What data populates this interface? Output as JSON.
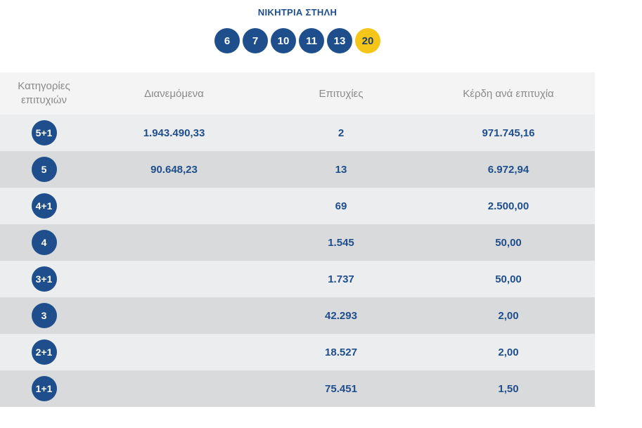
{
  "header": {
    "title": "ΝΙΚΗΤΡΙΑ ΣΤΗΛΗ",
    "numbers": [
      "6",
      "7",
      "10",
      "11",
      "13"
    ],
    "bonus": "20"
  },
  "table": {
    "columns": [
      "Κατηγορίες επιτυχιών",
      "Διανεμόμενα",
      "Επιτυχίες",
      "Κέρδη ανά επιτυχία"
    ],
    "rows": [
      {
        "category": "5+1",
        "distributed": "1.943.490,33",
        "winners": "2",
        "prize": "971.745,16"
      },
      {
        "category": "5",
        "distributed": "90.648,23",
        "winners": "13",
        "prize": "6.972,94"
      },
      {
        "category": "4+1",
        "distributed": "",
        "winners": "69",
        "prize": "2.500,00"
      },
      {
        "category": "4",
        "distributed": "",
        "winners": "1.545",
        "prize": "50,00"
      },
      {
        "category": "3+1",
        "distributed": "",
        "winners": "1.737",
        "prize": "50,00"
      },
      {
        "category": "3",
        "distributed": "",
        "winners": "42.293",
        "prize": "2,00"
      },
      {
        "category": "2+1",
        "distributed": "",
        "winners": "18.527",
        "prize": "2,00"
      },
      {
        "category": "1+1",
        "distributed": "",
        "winners": "75.451",
        "prize": "1,50"
      }
    ]
  },
  "colors": {
    "primary": "#1f4e8c",
    "bonus": "#f5c518",
    "header_bg": "#f4f4f4",
    "row_light": "#ecedee",
    "row_dark": "#d9dadb"
  }
}
